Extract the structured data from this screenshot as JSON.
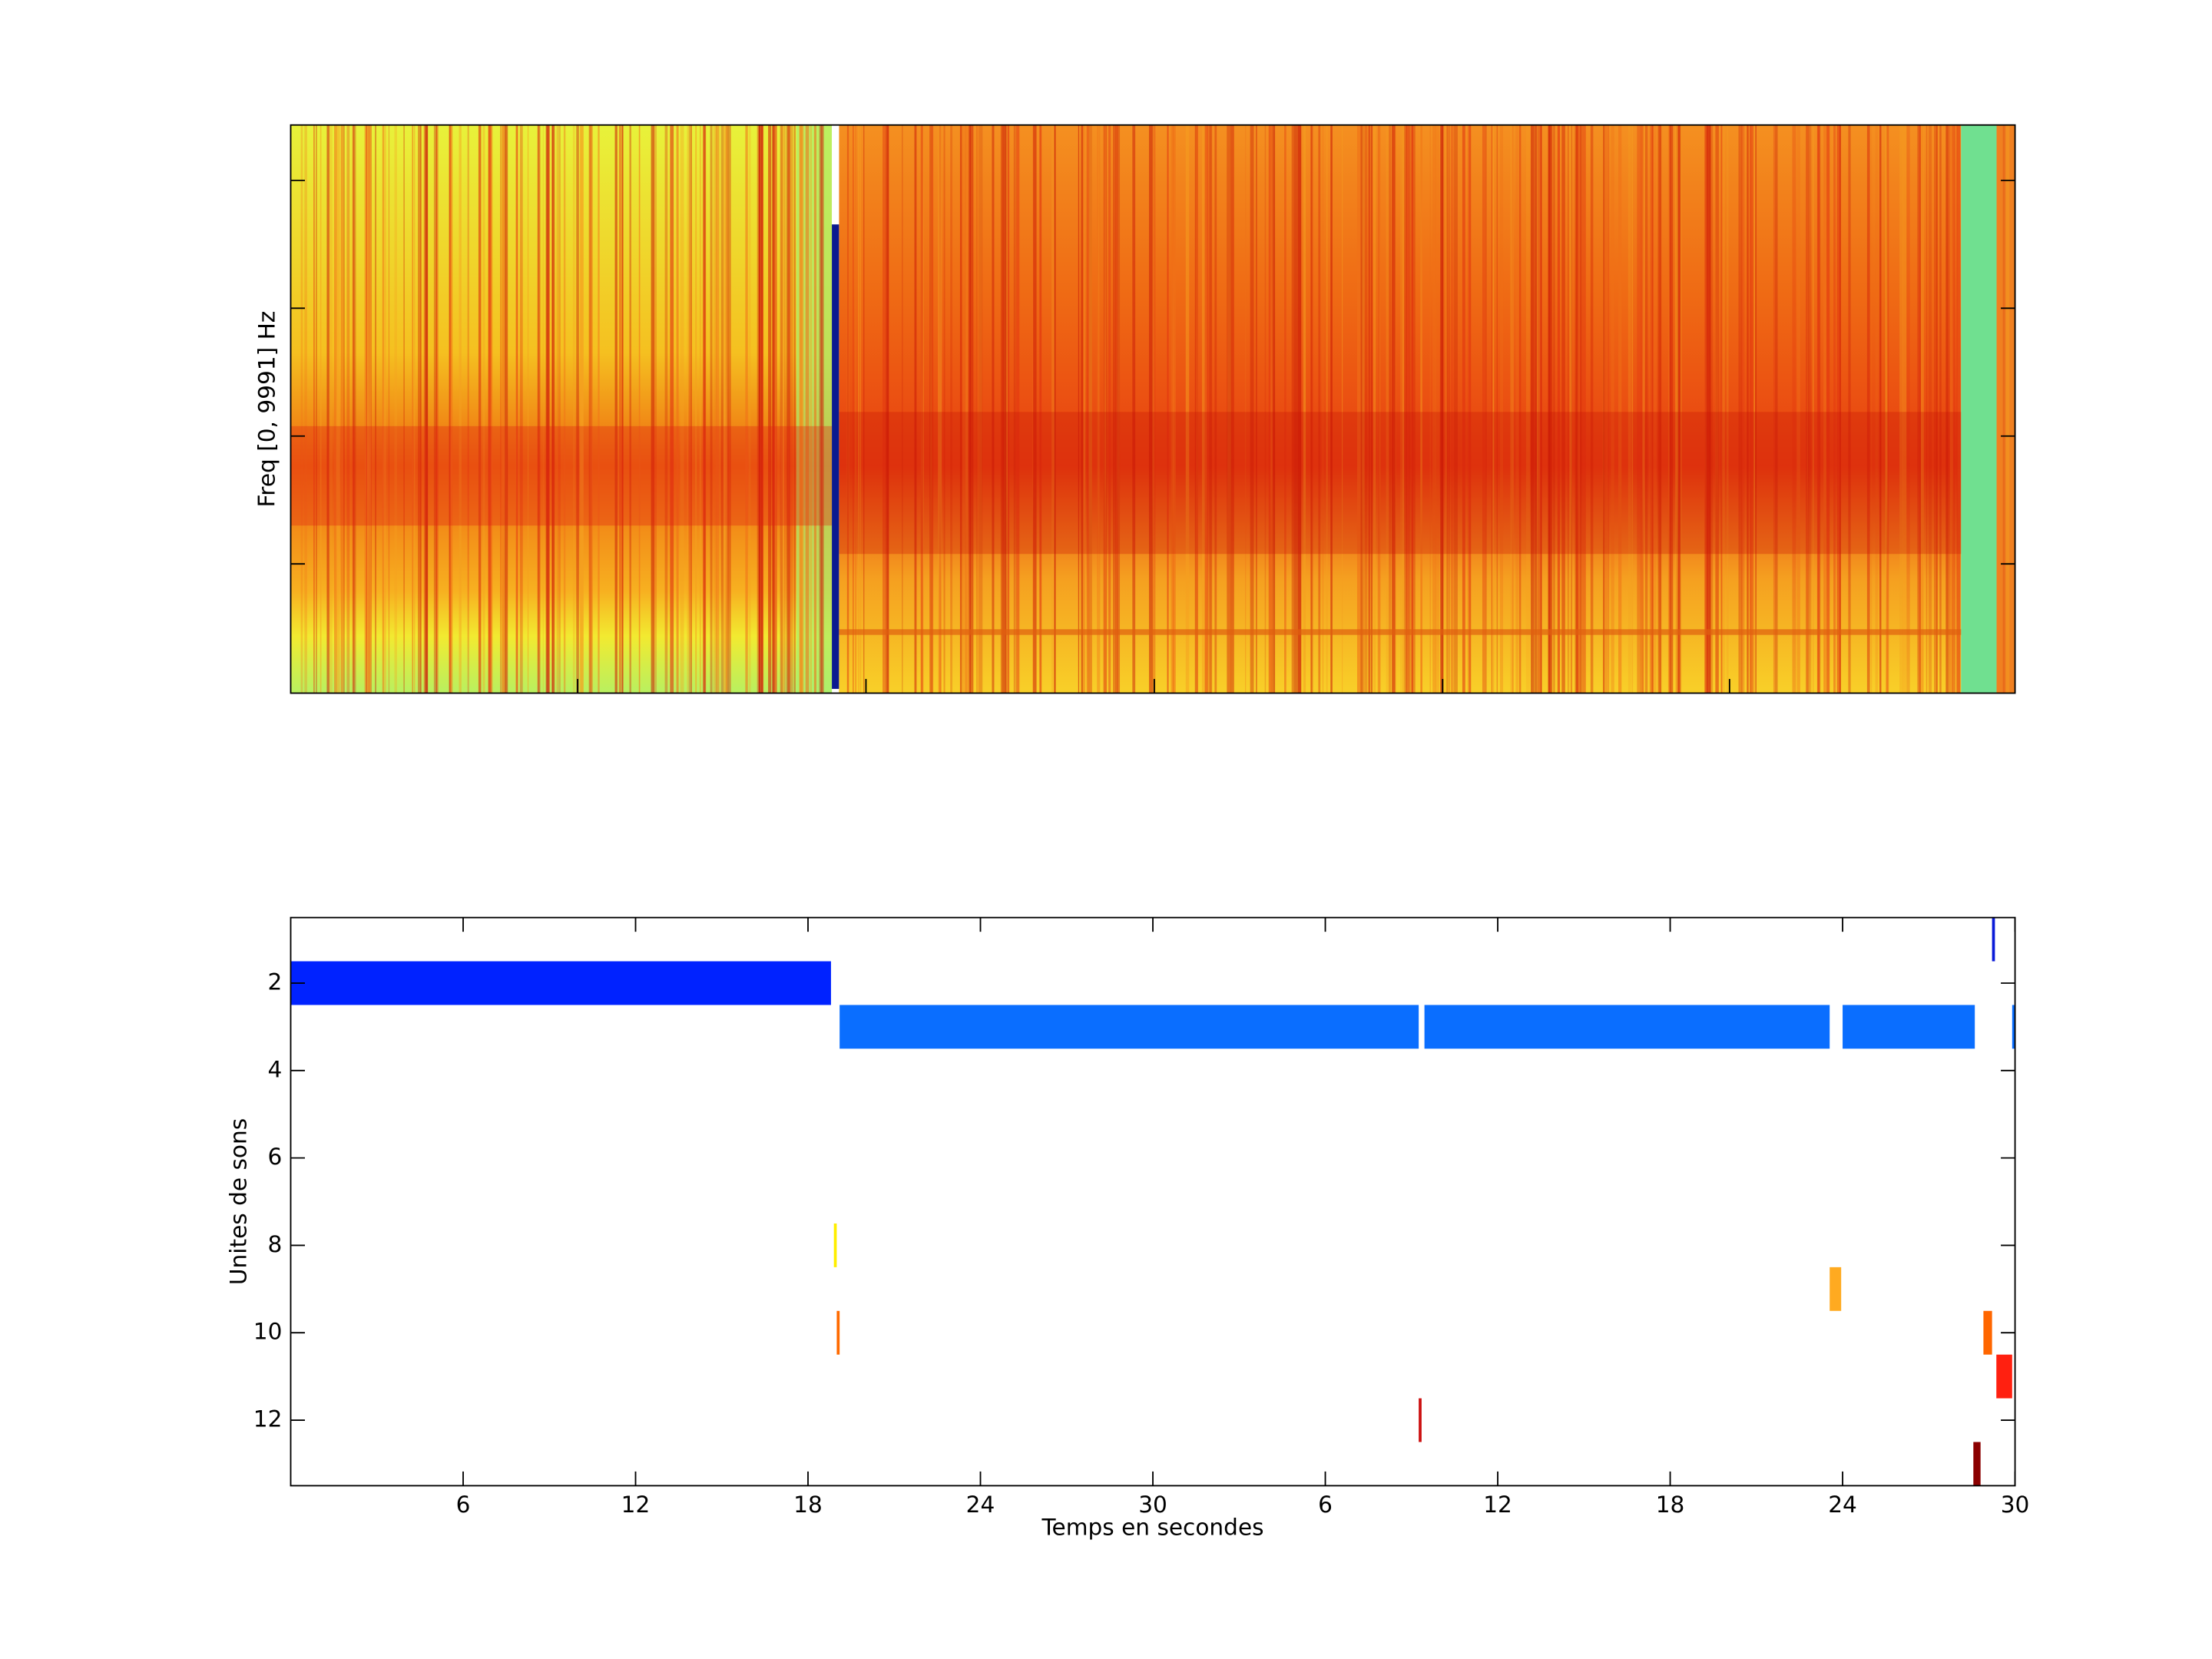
{
  "chart_data": [
    {
      "type": "spectrogram",
      "ylabel": "Freq [0, 9991] Hz"
    },
    {
      "type": "timeline",
      "xlabel": "Temps en secondes",
      "ylabel": "Unites de sons",
      "xlim": [
        0,
        60
      ],
      "ylim": [
        0.5,
        13.5
      ],
      "y_reversed": true,
      "xticks": [
        6,
        12,
        18,
        24,
        30,
        {
          "value": 36,
          "label": "6"
        },
        {
          "value": 42,
          "label": "12"
        },
        {
          "value": 48,
          "label": "18"
        },
        {
          "value": 54,
          "label": "24"
        },
        {
          "value": 60,
          "label": "30"
        }
      ],
      "yticks": [
        2,
        4,
        6,
        8,
        10,
        12
      ],
      "segments": [
        {
          "unit": 1,
          "start": 59.2,
          "end": 59.3,
          "color": "#0a1ad8"
        },
        {
          "unit": 2,
          "start": 0,
          "end": 18.8,
          "color": "#0022ff"
        },
        {
          "unit": 3,
          "start": 19.1,
          "end": 39.25,
          "color": "#0a6eff"
        },
        {
          "unit": 3,
          "start": 39.45,
          "end": 53.55,
          "color": "#0a6eff"
        },
        {
          "unit": 3,
          "start": 54.0,
          "end": 58.6,
          "color": "#0a6eff"
        },
        {
          "unit": 3,
          "start": 59.9,
          "end": 60,
          "color": "#0a6eff"
        },
        {
          "unit": 8,
          "start": 18.9,
          "end": 19.0,
          "color": "#ffee00"
        },
        {
          "unit": 9,
          "start": 53.55,
          "end": 53.95,
          "color": "#ffaa20"
        },
        {
          "unit": 10,
          "start": 19.0,
          "end": 19.1,
          "color": "#ff6a00"
        },
        {
          "unit": 10,
          "start": 58.9,
          "end": 59.2,
          "color": "#ff6600"
        },
        {
          "unit": 11,
          "start": 59.35,
          "end": 59.9,
          "color": "#ff2010"
        },
        {
          "unit": 12,
          "start": 39.25,
          "end": 39.35,
          "color": "#cc1010"
        },
        {
          "unit": 13,
          "start": 58.55,
          "end": 58.8,
          "color": "#8b0000"
        }
      ]
    }
  ]
}
